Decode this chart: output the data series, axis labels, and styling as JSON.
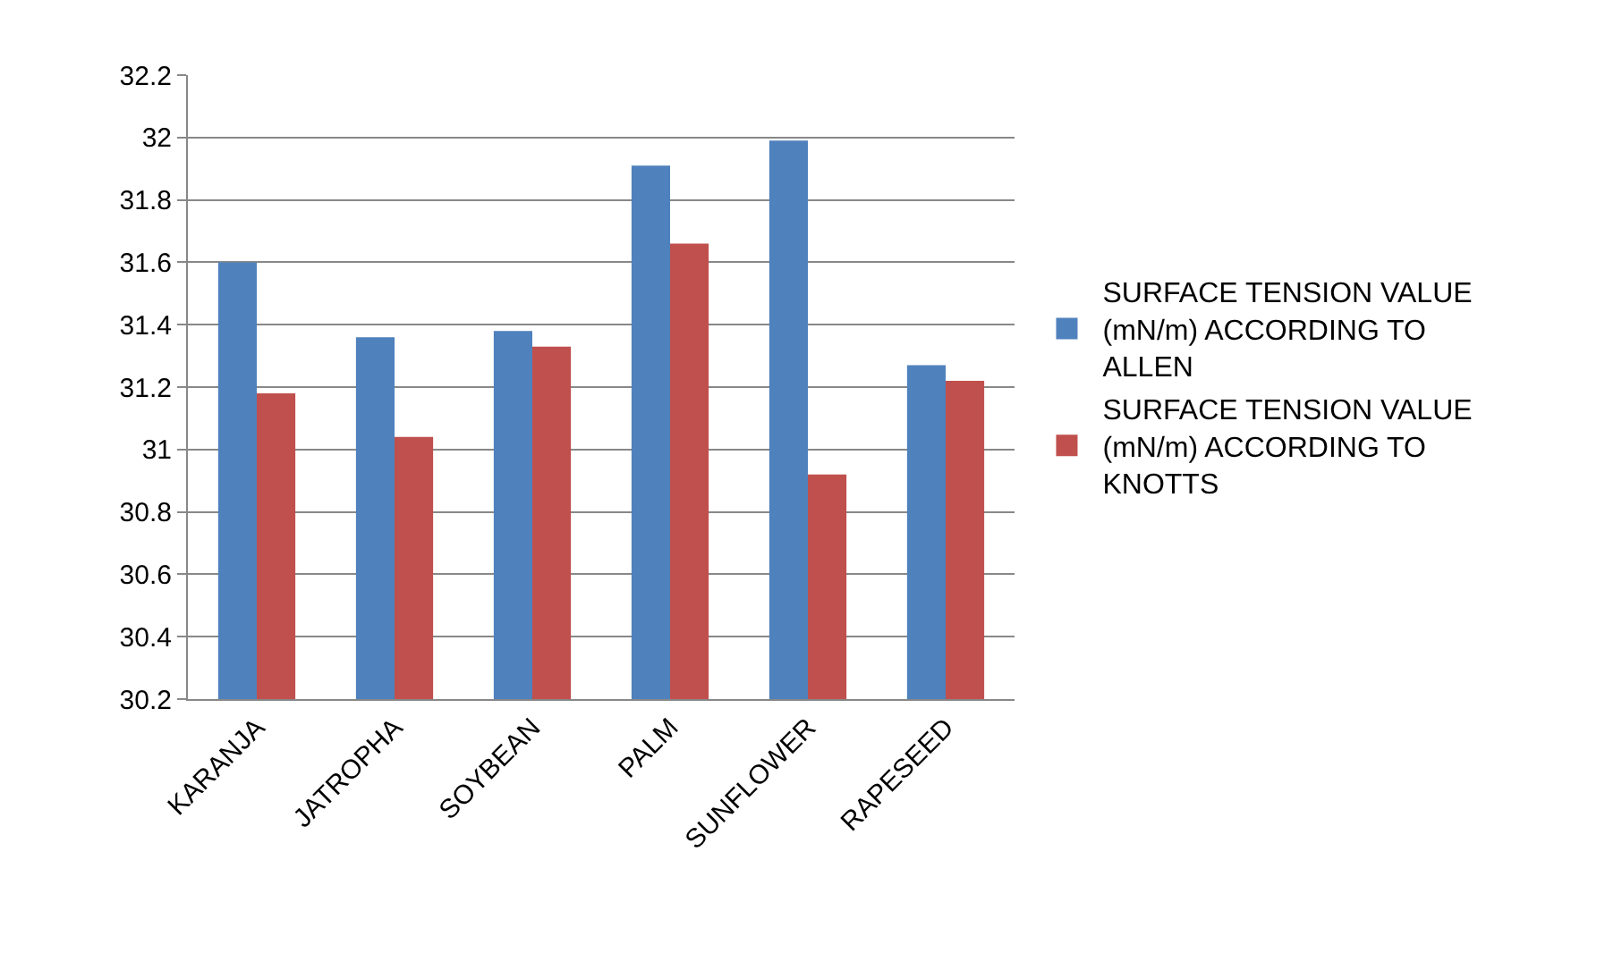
{
  "chart_data": {
    "type": "bar",
    "categories": [
      "KARANJA",
      "JATROPHA",
      "SOYBEAN",
      "PALM",
      "SUNFLOWER",
      "RAPESEED"
    ],
    "series": [
      {
        "name": "SURFACE TENSION VALUE (mN/m) ACCORDING TO ALLEN",
        "color": "#4f81bd",
        "values": [
          31.6,
          31.36,
          31.38,
          31.91,
          31.99,
          31.27
        ]
      },
      {
        "name": "SURFACE TENSION VALUE (mN/m) ACCORDING TO KNOTTS",
        "color": "#c0504d",
        "values": [
          31.18,
          31.04,
          31.33,
          31.66,
          30.92,
          31.22
        ]
      }
    ],
    "ylim": [
      30.2,
      32.2
    ],
    "yticks": [
      30.2,
      30.4,
      30.6,
      30.8,
      31,
      31.2,
      31.4,
      31.6,
      31.8,
      32,
      32.2
    ],
    "grid": "y",
    "legend": "right"
  }
}
